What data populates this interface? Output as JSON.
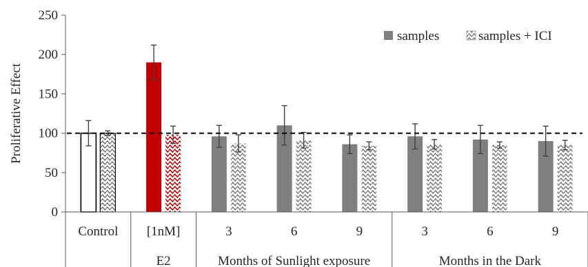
{
  "chart_data": {
    "type": "bar",
    "title": "",
    "xlabel": "",
    "ylabel": "Proliferative Effect",
    "ylim": [
      0,
      250
    ],
    "yticks": [
      0,
      50,
      100,
      150,
      200,
      250
    ],
    "grid": false,
    "legend_position": "top-right",
    "reference_line": {
      "y": 100,
      "style": "dashed"
    },
    "legend": [
      {
        "key": "samples",
        "label": "samples",
        "fill": "solid"
      },
      {
        "key": "ici",
        "label": "samples + ICI",
        "fill": "pattern"
      }
    ],
    "groups": [
      {
        "label": "",
        "categories": [
          "Control"
        ]
      },
      {
        "label": "E2",
        "categories": [
          "[1nM]"
        ]
      },
      {
        "label": "Months of Sunlight exposure",
        "categories": [
          "3",
          "6",
          "9"
        ]
      },
      {
        "label": "Months in the Dark",
        "categories": [
          "3",
          "6",
          "9"
        ]
      }
    ],
    "bars": [
      {
        "category": "Control",
        "samples": 100,
        "samples_err": 16,
        "ici": 100,
        "ici_err": 3,
        "samples_style": "control",
        "ici_style": "control"
      },
      {
        "category": "[1nM]",
        "samples": 190,
        "samples_err": 22,
        "ici": 98,
        "ici_err": 11,
        "samples_style": "e2",
        "ici_style": "e2"
      },
      {
        "category": "3",
        "samples": 96,
        "samples_err": 14,
        "ici": 87,
        "ici_err": 11,
        "samples_style": "sample",
        "ici_style": "sample"
      },
      {
        "category": "6",
        "samples": 110,
        "samples_err": 25,
        "ici": 91,
        "ici_err": 10,
        "samples_style": "sample",
        "ici_style": "sample"
      },
      {
        "category": "9",
        "samples": 86,
        "samples_err": 12,
        "ici": 84,
        "ici_err": 5,
        "samples_style": "sample",
        "ici_style": "sample"
      },
      {
        "category": "3",
        "samples": 96,
        "samples_err": 16,
        "ici": 86,
        "ici_err": 6,
        "samples_style": "sample",
        "ici_style": "sample"
      },
      {
        "category": "6",
        "samples": 92,
        "samples_err": 18,
        "ici": 85,
        "ici_err": 4,
        "samples_style": "sample",
        "ici_style": "sample"
      },
      {
        "category": "9",
        "samples": 90,
        "samples_err": 19,
        "ici": 85,
        "ici_err": 6,
        "samples_style": "sample",
        "ici_style": "sample"
      }
    ],
    "colors": {
      "sample": "#7f7f7f",
      "e2": "#c00000",
      "control_stroke": "#000000",
      "text": "#262626",
      "axis": "#595959"
    }
  }
}
